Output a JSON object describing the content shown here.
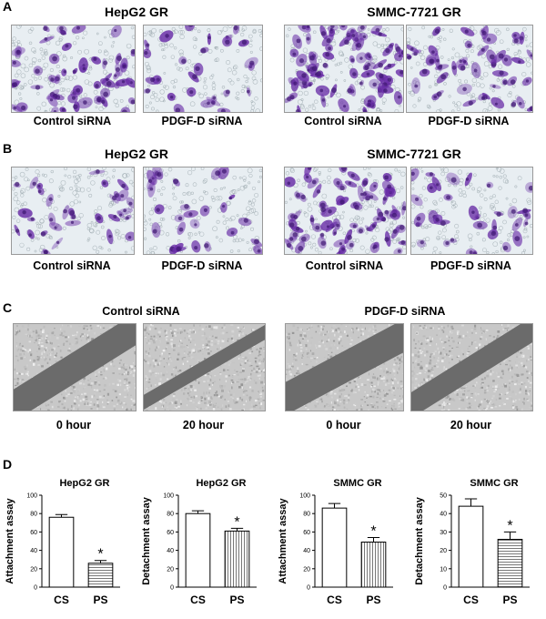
{
  "panels": {
    "A": {
      "letter": "A",
      "left_title": "HepG2 GR",
      "right_title": "SMMC-7721 GR",
      "captions": [
        "Control siRNA",
        "PDGF-D siRNA",
        "Control siRNA",
        "PDGF-D siRNA"
      ]
    },
    "B": {
      "letter": "B",
      "left_title": "HepG2 GR",
      "right_title": "SMMC-7721 GR",
      "captions": [
        "Control siRNA",
        "PDGF-D siRNA",
        "Control siRNA",
        "PDGF-D siRNA"
      ]
    },
    "C": {
      "letter": "C",
      "left_title": "Control siRNA",
      "right_title": "PDGF-D siRNA",
      "captions": [
        "0 hour",
        "20 hour",
        "0 hour",
        "20 hour"
      ]
    },
    "D": {
      "letter": "D"
    }
  },
  "colors": {
    "stain_purple": "#6a2fa8",
    "stain_bg": "#e8eef2",
    "scratch_gray": "#6b6b6b",
    "cell_field_gray": "#c8c8c8"
  },
  "chart_data": [
    {
      "type": "bar",
      "title": "HepG2 GR",
      "ylabel": "Attachment assay",
      "categories": [
        "CS",
        "PS"
      ],
      "values": [
        76,
        26
      ],
      "errors": [
        3,
        3
      ],
      "ylim": [
        0,
        100
      ],
      "yticks": [
        "0",
        "20",
        "40",
        "60",
        "80",
        "100"
      ],
      "fills": [
        "open",
        "horizontal-hatch"
      ],
      "significance": "*"
    },
    {
      "type": "bar",
      "title": "HepG2 GR",
      "ylabel": "Detachment assay",
      "categories": [
        "CS",
        "PS"
      ],
      "values": [
        80,
        61
      ],
      "errors": [
        3,
        3
      ],
      "ylim": [
        0,
        100
      ],
      "yticks": [
        "0",
        "20",
        "40",
        "60",
        "80",
        "100"
      ],
      "fills": [
        "open",
        "vertical-hatch"
      ],
      "significance": "*"
    },
    {
      "type": "bar",
      "title": "SMMC GR",
      "ylabel": "Attachment assay",
      "categories": [
        "CS",
        "PS"
      ],
      "values": [
        86,
        49
      ],
      "errors": [
        5,
        5
      ],
      "ylim": [
        0,
        100
      ],
      "yticks": [
        "0",
        "20",
        "40",
        "60",
        "80",
        "100"
      ],
      "fills": [
        "open",
        "vertical-hatch"
      ],
      "significance": "*"
    },
    {
      "type": "bar",
      "title": "SMMC GR",
      "ylabel": "Detachment assay",
      "categories": [
        "CS",
        "PS"
      ],
      "values": [
        44,
        26
      ],
      "errors": [
        4,
        4
      ],
      "ylim": [
        0,
        50
      ],
      "yticks": [
        "0",
        "10",
        "20",
        "30",
        "40",
        "50"
      ],
      "fills": [
        "open",
        "horizontal-hatch"
      ],
      "significance": "*"
    }
  ]
}
